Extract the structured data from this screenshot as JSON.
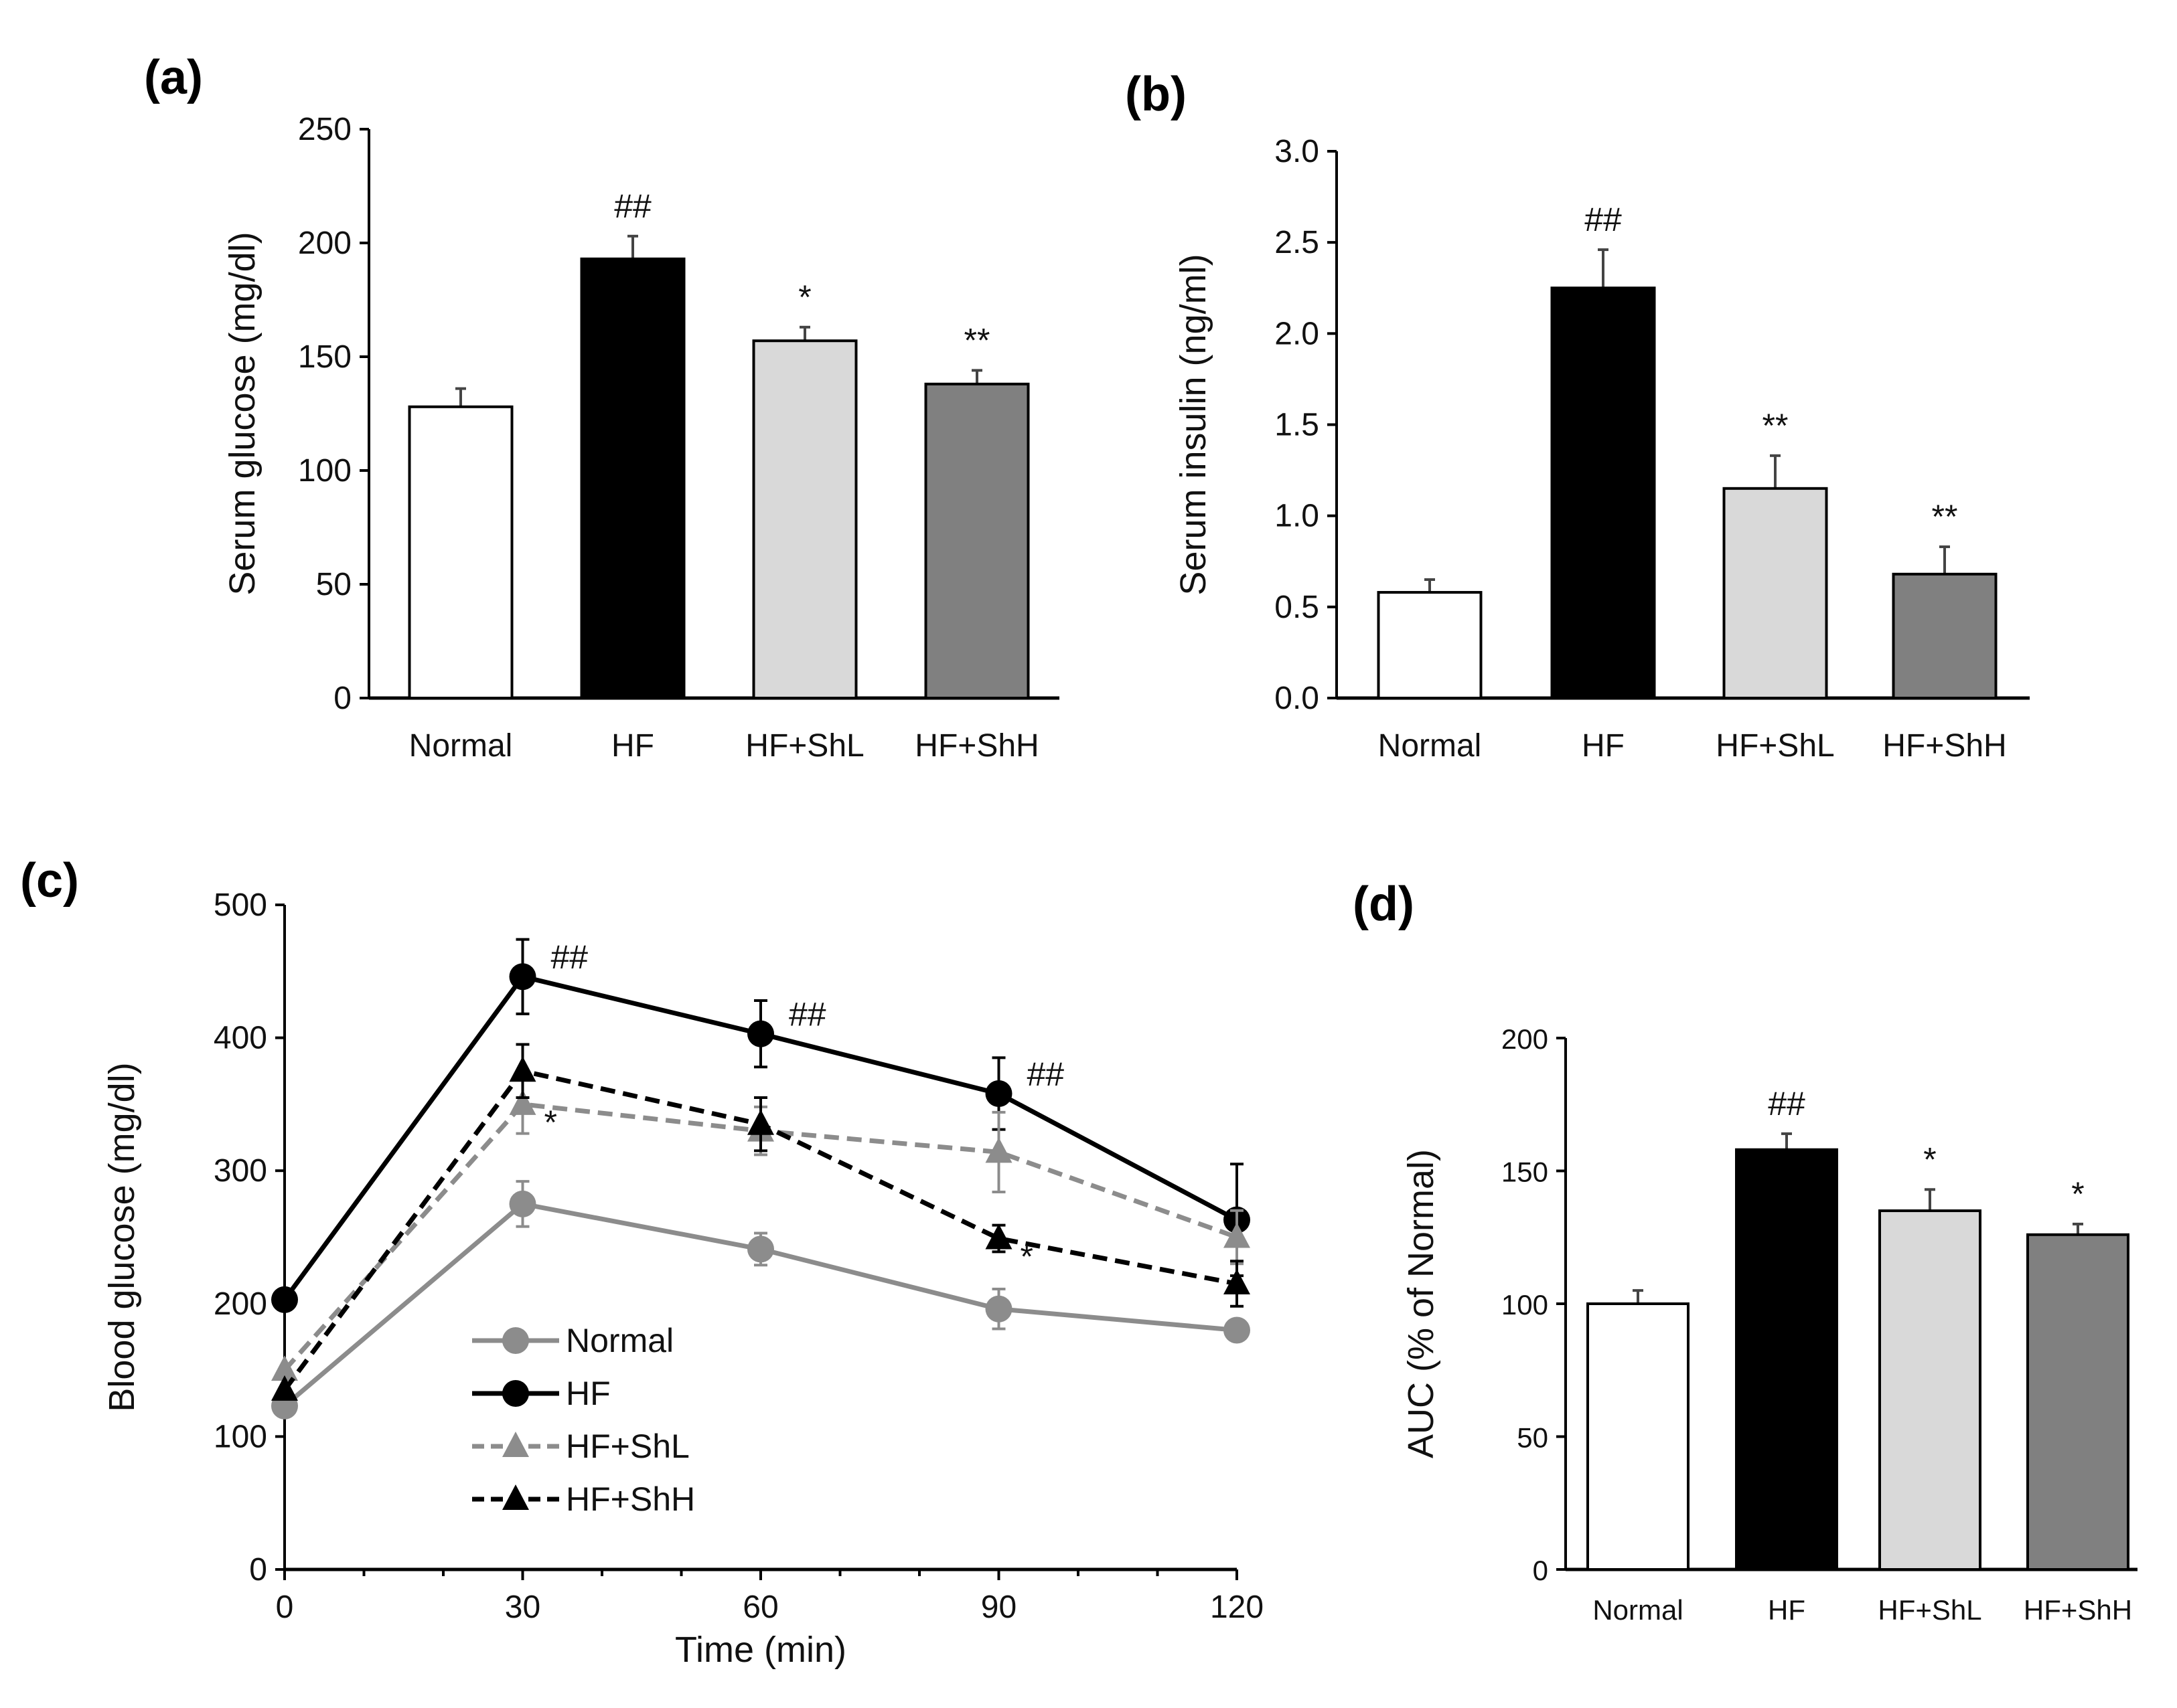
{
  "chart_data": [
    {
      "panel": "(a)",
      "type": "bar",
      "categories": [
        "Normal",
        "HF",
        "HF+ShL",
        "HF+ShH"
      ],
      "values": [
        128,
        193,
        157,
        138
      ],
      "errors": [
        8,
        10,
        6,
        6
      ],
      "significance": [
        "",
        "##",
        "*",
        "**"
      ],
      "colors": [
        "#ffffff",
        "#000000",
        "#d9d9d9",
        "#808080"
      ],
      "ylabel": "Serum glucose (mg/dl)",
      "ylim": [
        0,
        250
      ],
      "yticks": [
        "0",
        "50",
        "100",
        "150",
        "200",
        "250"
      ]
    },
    {
      "panel": "(b)",
      "type": "bar",
      "categories": [
        "Normal",
        "HF",
        "HF+ShL",
        "HF+ShH"
      ],
      "values": [
        0.58,
        2.25,
        1.15,
        0.68
      ],
      "errors": [
        0.07,
        0.21,
        0.18,
        0.15
      ],
      "significance": [
        "",
        "##",
        "**",
        "**"
      ],
      "colors": [
        "#ffffff",
        "#000000",
        "#d9d9d9",
        "#808080"
      ],
      "ylabel": "Serum insulin (ng/ml)",
      "ylim": [
        0,
        3.0
      ],
      "yticks": [
        "0.0",
        "0.5",
        "1.0",
        "1.5",
        "2.0",
        "2.5",
        "3.0"
      ]
    },
    {
      "panel": "(c)",
      "type": "line",
      "x": [
        0,
        30,
        60,
        90,
        120
      ],
      "xticks": [
        "0",
        "30",
        "60",
        "90",
        "120"
      ],
      "xlabel": "Time (min)",
      "ylabel": "Blood glucose (mg/dl)",
      "ylim": [
        0,
        500
      ],
      "xlim": [
        0,
        120
      ],
      "yticks": [
        "0",
        "100",
        "200",
        "300",
        "400",
        "500"
      ],
      "legend_position": "center-left",
      "series": [
        {
          "name": "Normal",
          "values": [
            123,
            275,
            241,
            196,
            180
          ],
          "errors": [
            0,
            17,
            12,
            15,
            0
          ],
          "color": "#8c8c8c",
          "marker": "circle",
          "dashed": false,
          "significance": [
            "",
            "",
            "",
            "",
            ""
          ]
        },
        {
          "name": "HF",
          "values": [
            203,
            446,
            403,
            358,
            263
          ],
          "errors": [
            0,
            28,
            25,
            27,
            42
          ],
          "color": "#000000",
          "marker": "circle",
          "dashed": false,
          "significance": [
            "",
            "##",
            "##",
            "##",
            ""
          ]
        },
        {
          "name": "HF+ShL",
          "values": [
            150,
            350,
            330,
            314,
            250
          ],
          "errors": [
            0,
            22,
            18,
            30,
            20
          ],
          "color": "#8c8c8c",
          "marker": "triangle",
          "dashed": true,
          "significance": [
            "",
            "*",
            "",
            "",
            ""
          ]
        },
        {
          "name": "HF+ShH",
          "values": [
            135,
            375,
            335,
            249,
            215
          ],
          "errors": [
            0,
            20,
            20,
            10,
            17
          ],
          "color": "#000000",
          "marker": "triangle",
          "dashed": true,
          "significance": [
            "",
            "",
            "",
            "*",
            ""
          ]
        }
      ]
    },
    {
      "panel": "(d)",
      "type": "bar",
      "categories": [
        "Normal",
        "HF",
        "HF+ShL",
        "HF+ShH"
      ],
      "values": [
        100,
        158,
        135,
        126
      ],
      "errors": [
        5,
        6,
        8,
        4
      ],
      "significance": [
        "",
        "##",
        "*",
        "*"
      ],
      "colors": [
        "#ffffff",
        "#000000",
        "#d9d9d9",
        "#808080"
      ],
      "ylabel": "AUC (% of Normal)",
      "ylim": [
        0,
        200
      ],
      "yticks": [
        "0",
        "50",
        "100",
        "150",
        "200"
      ]
    }
  ]
}
